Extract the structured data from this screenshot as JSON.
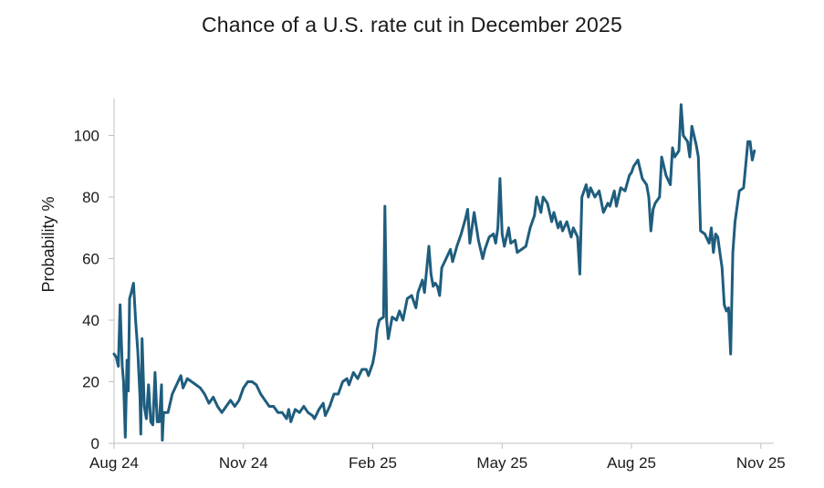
{
  "chart_data": {
    "type": "line",
    "title": "Chance of a U.S. rate cut in December 2025",
    "xlabel": "",
    "ylabel": "Probability %",
    "ylim": [
      0,
      112
    ],
    "xlim": [
      0,
      15.3
    ],
    "x_unit": "months since Aug 24",
    "yticks": [
      0,
      20,
      40,
      60,
      80,
      100
    ],
    "xticks": [
      {
        "value": 0,
        "label": "Aug 24"
      },
      {
        "value": 3,
        "label": "Nov 24"
      },
      {
        "value": 6,
        "label": "Feb 25"
      },
      {
        "value": 9,
        "label": "May 25"
      },
      {
        "value": 12,
        "label": "Aug 25"
      },
      {
        "value": 15,
        "label": "Nov 25"
      }
    ],
    "grid": false,
    "legend": "none",
    "series": [
      {
        "name": "Probability %",
        "color": "#1f5d7e",
        "points": [
          [
            0.0,
            29
          ],
          [
            0.05,
            28
          ],
          [
            0.1,
            25
          ],
          [
            0.14,
            45
          ],
          [
            0.19,
            25
          ],
          [
            0.22,
            20
          ],
          [
            0.26,
            2
          ],
          [
            0.3,
            27
          ],
          [
            0.33,
            17
          ],
          [
            0.36,
            47
          ],
          [
            0.4,
            49
          ],
          [
            0.45,
            52
          ],
          [
            0.5,
            40
          ],
          [
            0.55,
            30
          ],
          [
            0.6,
            15
          ],
          [
            0.62,
            3
          ],
          [
            0.65,
            34
          ],
          [
            0.7,
            12
          ],
          [
            0.75,
            8
          ],
          [
            0.8,
            19
          ],
          [
            0.85,
            7
          ],
          [
            0.9,
            6
          ],
          [
            0.95,
            23
          ],
          [
            1.0,
            7
          ],
          [
            1.05,
            7
          ],
          [
            1.1,
            19
          ],
          [
            1.12,
            1
          ],
          [
            1.15,
            10
          ],
          [
            1.25,
            10
          ],
          [
            1.35,
            16
          ],
          [
            1.45,
            19
          ],
          [
            1.55,
            22
          ],
          [
            1.6,
            18
          ],
          [
            1.7,
            21
          ],
          [
            1.8,
            20
          ],
          [
            1.9,
            19
          ],
          [
            2.0,
            18
          ],
          [
            2.1,
            16
          ],
          [
            2.2,
            13
          ],
          [
            2.3,
            15
          ],
          [
            2.4,
            12
          ],
          [
            2.5,
            10
          ],
          [
            2.6,
            12
          ],
          [
            2.7,
            14
          ],
          [
            2.8,
            12
          ],
          [
            2.9,
            14
          ],
          [
            3.0,
            18
          ],
          [
            3.1,
            20
          ],
          [
            3.2,
            20
          ],
          [
            3.3,
            19
          ],
          [
            3.4,
            16
          ],
          [
            3.5,
            14
          ],
          [
            3.6,
            12
          ],
          [
            3.7,
            12
          ],
          [
            3.8,
            10
          ],
          [
            3.9,
            10
          ],
          [
            4.0,
            8
          ],
          [
            4.05,
            11
          ],
          [
            4.1,
            7
          ],
          [
            4.2,
            11
          ],
          [
            4.3,
            10
          ],
          [
            4.4,
            12
          ],
          [
            4.5,
            10
          ],
          [
            4.6,
            9
          ],
          [
            4.65,
            8
          ],
          [
            4.75,
            11
          ],
          [
            4.85,
            13
          ],
          [
            4.9,
            9
          ],
          [
            5.0,
            12
          ],
          [
            5.1,
            16
          ],
          [
            5.2,
            16
          ],
          [
            5.3,
            20
          ],
          [
            5.4,
            21
          ],
          [
            5.45,
            19
          ],
          [
            5.55,
            23
          ],
          [
            5.65,
            21
          ],
          [
            5.75,
            24
          ],
          [
            5.85,
            24
          ],
          [
            5.9,
            22
          ],
          [
            6.0,
            26
          ],
          [
            6.05,
            30
          ],
          [
            6.1,
            37
          ],
          [
            6.15,
            40
          ],
          [
            6.25,
            41
          ],
          [
            6.28,
            77
          ],
          [
            6.32,
            40
          ],
          [
            6.36,
            34
          ],
          [
            6.45,
            41
          ],
          [
            6.55,
            40
          ],
          [
            6.62,
            43
          ],
          [
            6.7,
            40
          ],
          [
            6.8,
            47
          ],
          [
            6.9,
            48
          ],
          [
            7.0,
            44
          ],
          [
            7.05,
            49
          ],
          [
            7.15,
            53
          ],
          [
            7.2,
            49
          ],
          [
            7.3,
            64
          ],
          [
            7.35,
            55
          ],
          [
            7.4,
            51
          ],
          [
            7.45,
            52
          ],
          [
            7.5,
            51
          ],
          [
            7.55,
            48
          ],
          [
            7.6,
            57
          ],
          [
            7.7,
            60
          ],
          [
            7.8,
            63
          ],
          [
            7.85,
            59
          ],
          [
            7.95,
            64
          ],
          [
            8.05,
            68
          ],
          [
            8.15,
            73
          ],
          [
            8.2,
            76
          ],
          [
            8.25,
            65
          ],
          [
            8.35,
            75
          ],
          [
            8.45,
            66
          ],
          [
            8.55,
            60
          ],
          [
            8.6,
            63
          ],
          [
            8.7,
            67
          ],
          [
            8.8,
            68
          ],
          [
            8.85,
            65
          ],
          [
            8.9,
            70
          ],
          [
            8.95,
            86
          ],
          [
            9.0,
            68
          ],
          [
            9.05,
            64
          ],
          [
            9.15,
            70
          ],
          [
            9.2,
            65
          ],
          [
            9.3,
            66
          ],
          [
            9.35,
            62
          ],
          [
            9.45,
            63
          ],
          [
            9.55,
            64
          ],
          [
            9.65,
            70
          ],
          [
            9.75,
            74
          ],
          [
            9.8,
            80
          ],
          [
            9.9,
            75
          ],
          [
            9.95,
            80
          ],
          [
            10.05,
            78
          ],
          [
            10.15,
            72
          ],
          [
            10.2,
            75
          ],
          [
            10.3,
            70
          ],
          [
            10.35,
            72
          ],
          [
            10.4,
            69
          ],
          [
            10.5,
            72
          ],
          [
            10.6,
            67
          ],
          [
            10.65,
            70
          ],
          [
            10.75,
            67
          ],
          [
            10.8,
            55
          ],
          [
            10.85,
            80
          ],
          [
            10.95,
            84
          ],
          [
            11.0,
            80
          ],
          [
            11.05,
            83
          ],
          [
            11.15,
            80
          ],
          [
            11.25,
            82
          ],
          [
            11.35,
            75
          ],
          [
            11.45,
            78
          ],
          [
            11.5,
            77
          ],
          [
            11.6,
            82
          ],
          [
            11.65,
            77
          ],
          [
            11.75,
            83
          ],
          [
            11.85,
            82
          ],
          [
            11.95,
            87
          ],
          [
            12.0,
            88
          ],
          [
            12.05,
            90
          ],
          [
            12.15,
            92
          ],
          [
            12.2,
            89
          ],
          [
            12.25,
            86
          ],
          [
            12.35,
            84
          ],
          [
            12.4,
            80
          ],
          [
            12.45,
            69
          ],
          [
            12.5,
            76
          ],
          [
            12.55,
            78
          ],
          [
            12.65,
            80
          ],
          [
            12.7,
            93
          ],
          [
            12.8,
            87
          ],
          [
            12.9,
            84
          ],
          [
            12.95,
            96
          ],
          [
            13.0,
            93
          ],
          [
            13.1,
            95
          ],
          [
            13.15,
            110
          ],
          [
            13.2,
            100
          ],
          [
            13.3,
            98
          ],
          [
            13.35,
            93
          ],
          [
            13.4,
            103
          ],
          [
            13.5,
            97
          ],
          [
            13.55,
            93
          ],
          [
            13.6,
            69
          ],
          [
            13.7,
            68
          ],
          [
            13.8,
            65
          ],
          [
            13.85,
            70
          ],
          [
            13.9,
            62
          ],
          [
            13.95,
            68
          ],
          [
            14.0,
            67
          ],
          [
            14.05,
            62
          ],
          [
            14.1,
            57
          ],
          [
            14.15,
            45
          ],
          [
            14.2,
            43
          ],
          [
            14.25,
            44
          ],
          [
            14.3,
            29
          ],
          [
            14.35,
            62
          ],
          [
            14.4,
            72
          ],
          [
            14.5,
            82
          ],
          [
            14.6,
            83
          ],
          [
            14.7,
            98
          ],
          [
            14.75,
            98
          ],
          [
            14.8,
            92
          ],
          [
            14.85,
            95
          ]
        ]
      }
    ]
  }
}
